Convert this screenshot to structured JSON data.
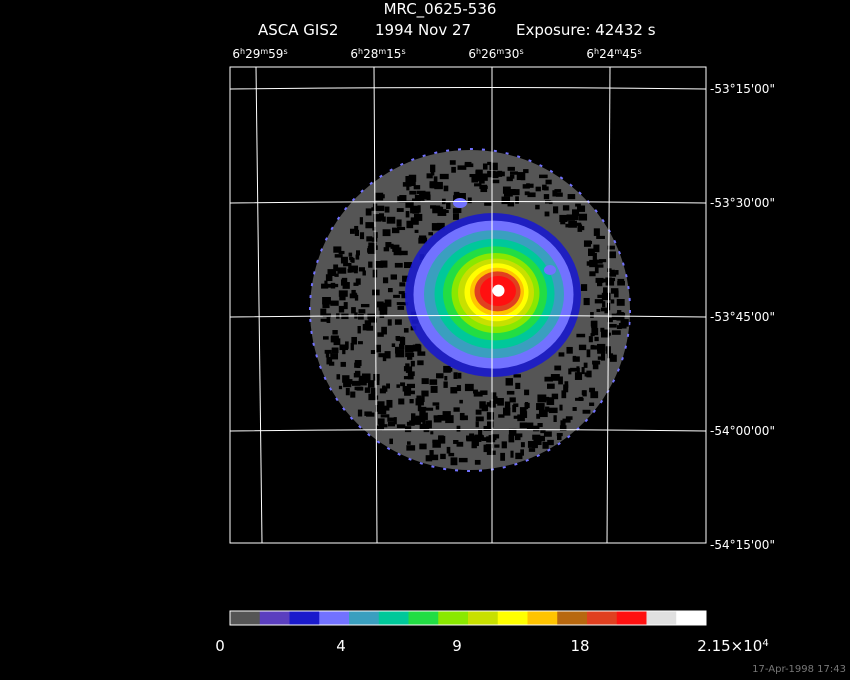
{
  "header": {
    "title": "MRC_0625-536",
    "instrument": "ASCA GIS2",
    "date": "1994 Nov 27",
    "exposure": "Exposure: 42432 s"
  },
  "ra_labels": [
    [
      "6",
      "h",
      "29",
      "m",
      "59",
      "s"
    ],
    [
      "6",
      "h",
      "28",
      "m",
      "15",
      "s"
    ],
    [
      "6",
      "h",
      "26",
      "m",
      "30",
      "s"
    ],
    [
      "6",
      "h",
      "24",
      "m",
      "45",
      "s"
    ]
  ],
  "dec_labels": [
    "-53°15'00\"",
    "-53°30'00\"",
    "-53°45'00\"",
    "-54°00'00\"",
    "-54°15'00\""
  ],
  "colorbar": {
    "colors": [
      "#555555",
      "#5b3fbf",
      "#1a1acc",
      "#7272ff",
      "#3a9fbf",
      "#00c89a",
      "#22dd44",
      "#8ae800",
      "#c8e000",
      "#ffff00",
      "#ffc400",
      "#b8680f",
      "#e04020",
      "#ff1010",
      "#e0e0e0",
      "#ffffff"
    ],
    "labels": [
      [
        "0"
      ],
      [
        "4"
      ],
      [
        "9"
      ],
      [
        "18"
      ],
      [
        "2.15×10",
        "4"
      ]
    ]
  },
  "timestamp": "17-Apr-1998 17:43"
}
